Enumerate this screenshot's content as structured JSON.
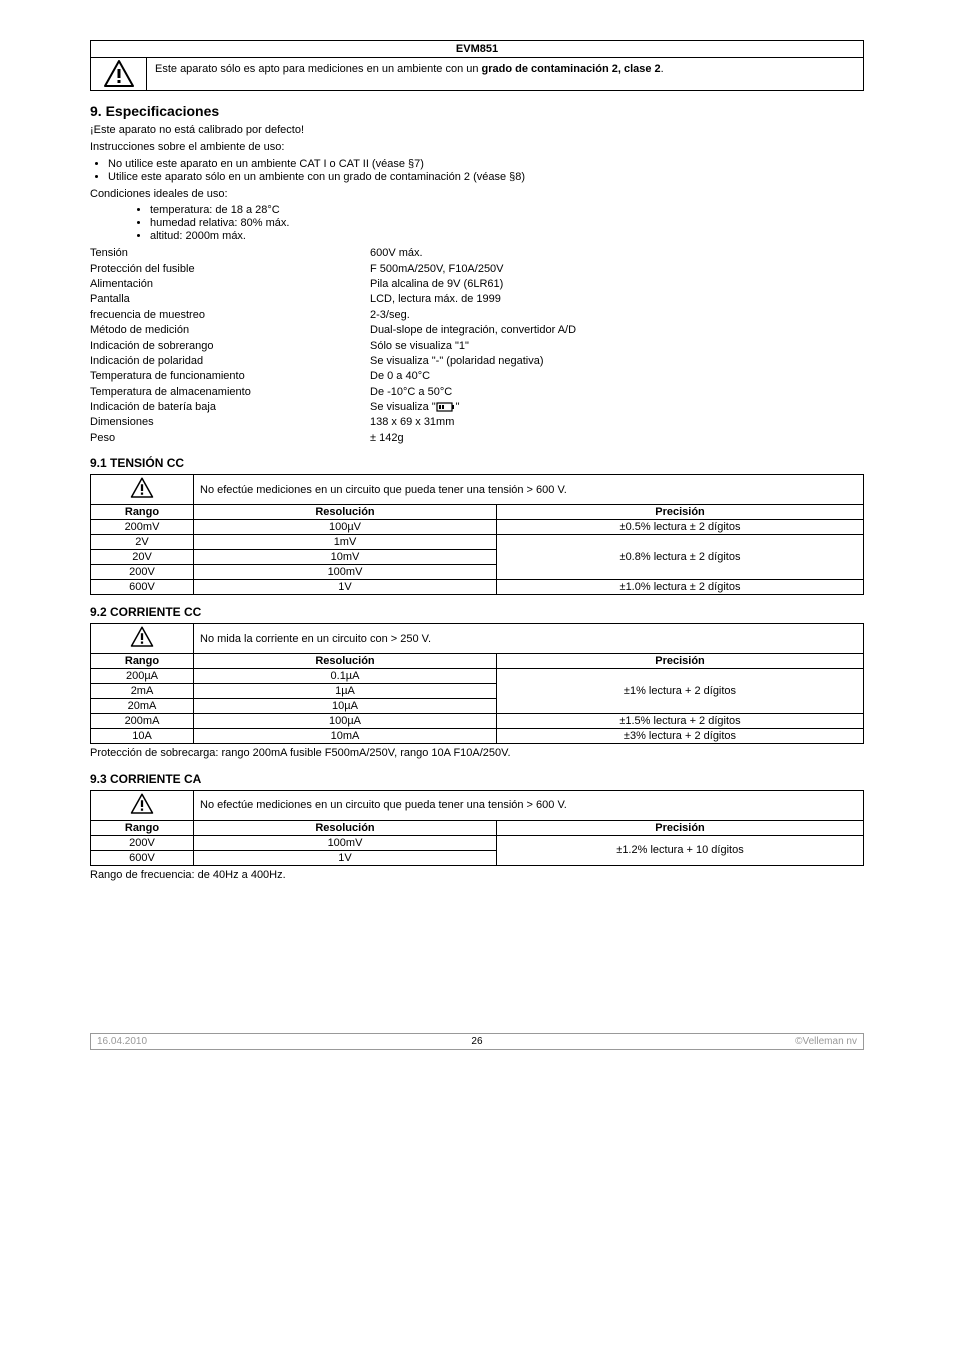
{
  "header": {
    "title": "EVM851",
    "warning_prefix": "Este aparato sólo es apto para mediciones en un ambiente con un ",
    "warning_bold": "grado de contaminación 2, clase 2",
    "warning_suffix": "."
  },
  "section9": {
    "title": "9.  Especificaciones",
    "calib": "¡Este aparato no está calibrado por defecto!",
    "instr": "Instrucciones sobre el ambiente de uso:",
    "instr_items": [
      "No utilice este aparato en un ambiente CAT I o CAT II (véase §7)",
      "Utilice este aparato sólo en un ambiente con un grado de contaminación 2 (véase §8)"
    ],
    "cond": "Condiciones ideales de uso:",
    "cond_items": [
      "temperatura: de 18 a 28°C",
      "humedad relativa: 80% máx.",
      "altitud: 2000m máx."
    ],
    "specs": [
      {
        "label": "Tensión",
        "value": "600V máx."
      },
      {
        "label": "Protección del fusible",
        "value": "F 500mA/250V, F10A/250V"
      },
      {
        "label": "Alimentación",
        "value": "Pila alcalina de 9V (6LR61)"
      },
      {
        "label": "Pantalla",
        "value": "LCD, lectura máx. de 1999"
      },
      {
        "label": "frecuencia de muestreo",
        "value": " 2-3/seg."
      },
      {
        "label": "Método de medición",
        "value": "Dual-slope de integración, convertidor A/D"
      },
      {
        "label": "Indicación de sobrerango",
        "value": "Sólo se visualiza \"1\""
      },
      {
        "label": "Indicación de polaridad",
        "value": "Se visualiza \"-\" (polaridad negativa)"
      },
      {
        "label": "Temperatura de funcionamiento",
        "value": "De 0 a 40°C"
      },
      {
        "label": "Temperatura de almacenamiento",
        "value": "De -10°C a 50°C"
      },
      {
        "label": "Indicación de batería baja",
        "value": "__BATTERY__"
      },
      {
        "label": "Dimensiones",
        "value": "138 x 69 x 31mm"
      },
      {
        "label": "Peso",
        "value": "± 142g"
      }
    ],
    "battery_text_prefix": "Se visualiza \"",
    "battery_text_suffix": "\""
  },
  "tables": {
    "headers": {
      "range": "Rango",
      "resolution": "Resolución",
      "precision": "Precisión"
    }
  },
  "t91": {
    "title": "9.1 TENSIÓN CC",
    "warning": "No efectúe mediciones en un circuito que pueda tener una tensión > 600 V.",
    "rows": [
      {
        "range": "200mV",
        "res": "100µV",
        "prec": "±0.5% lectura ± 2 dígitos",
        "rowspan": 1
      },
      {
        "range": "2V",
        "res": "1mV",
        "prec": "±0.8% lectura ± 2 dígitos",
        "rowspan": 3
      },
      {
        "range": "20V",
        "res": "10mV"
      },
      {
        "range": "200V",
        "res": "100mV"
      },
      {
        "range": "600V",
        "res": "1V",
        "prec": "±1.0% lectura ± 2 dígitos",
        "rowspan": 1
      }
    ]
  },
  "t92": {
    "title": "9.2 CORRIENTE CC",
    "warning": "No mida la corriente en un circuito con > 250 V.",
    "rows": [
      {
        "range": "200µA",
        "res": "0.1µA",
        "prec": "±1% lectura + 2 dígitos",
        "rowspan": 3
      },
      {
        "range": "2mA",
        "res": "1µA"
      },
      {
        "range": "20mA",
        "res": "10µA"
      },
      {
        "range": "200mA",
        "res": "100µA",
        "prec": "±1.5% lectura + 2 dígitos",
        "rowspan": 1
      },
      {
        "range": "10A",
        "res": "10mA",
        "prec": "±3% lectura + 2 dígitos",
        "rowspan": 1
      }
    ],
    "note": "Protección de sobrecarga: rango 200mA fusible F500mA/250V, rango 10A F10A/250V."
  },
  "t93": {
    "title": "9.3 CORRIENTE CA",
    "warning": "No efectúe mediciones en un circuito que pueda tener una tensión > 600 V.",
    "rows": [
      {
        "range": "200V",
        "res": "100mV",
        "prec": "±1.2% lectura + 10 dígitos",
        "rowspan": 2
      },
      {
        "range": "600V",
        "res": "1V"
      }
    ],
    "note": "Rango de frecuencia: de 40Hz a 400Hz."
  },
  "footer": {
    "date": "16.04.2010",
    "page": "26",
    "copyright": "©Velleman nv"
  }
}
